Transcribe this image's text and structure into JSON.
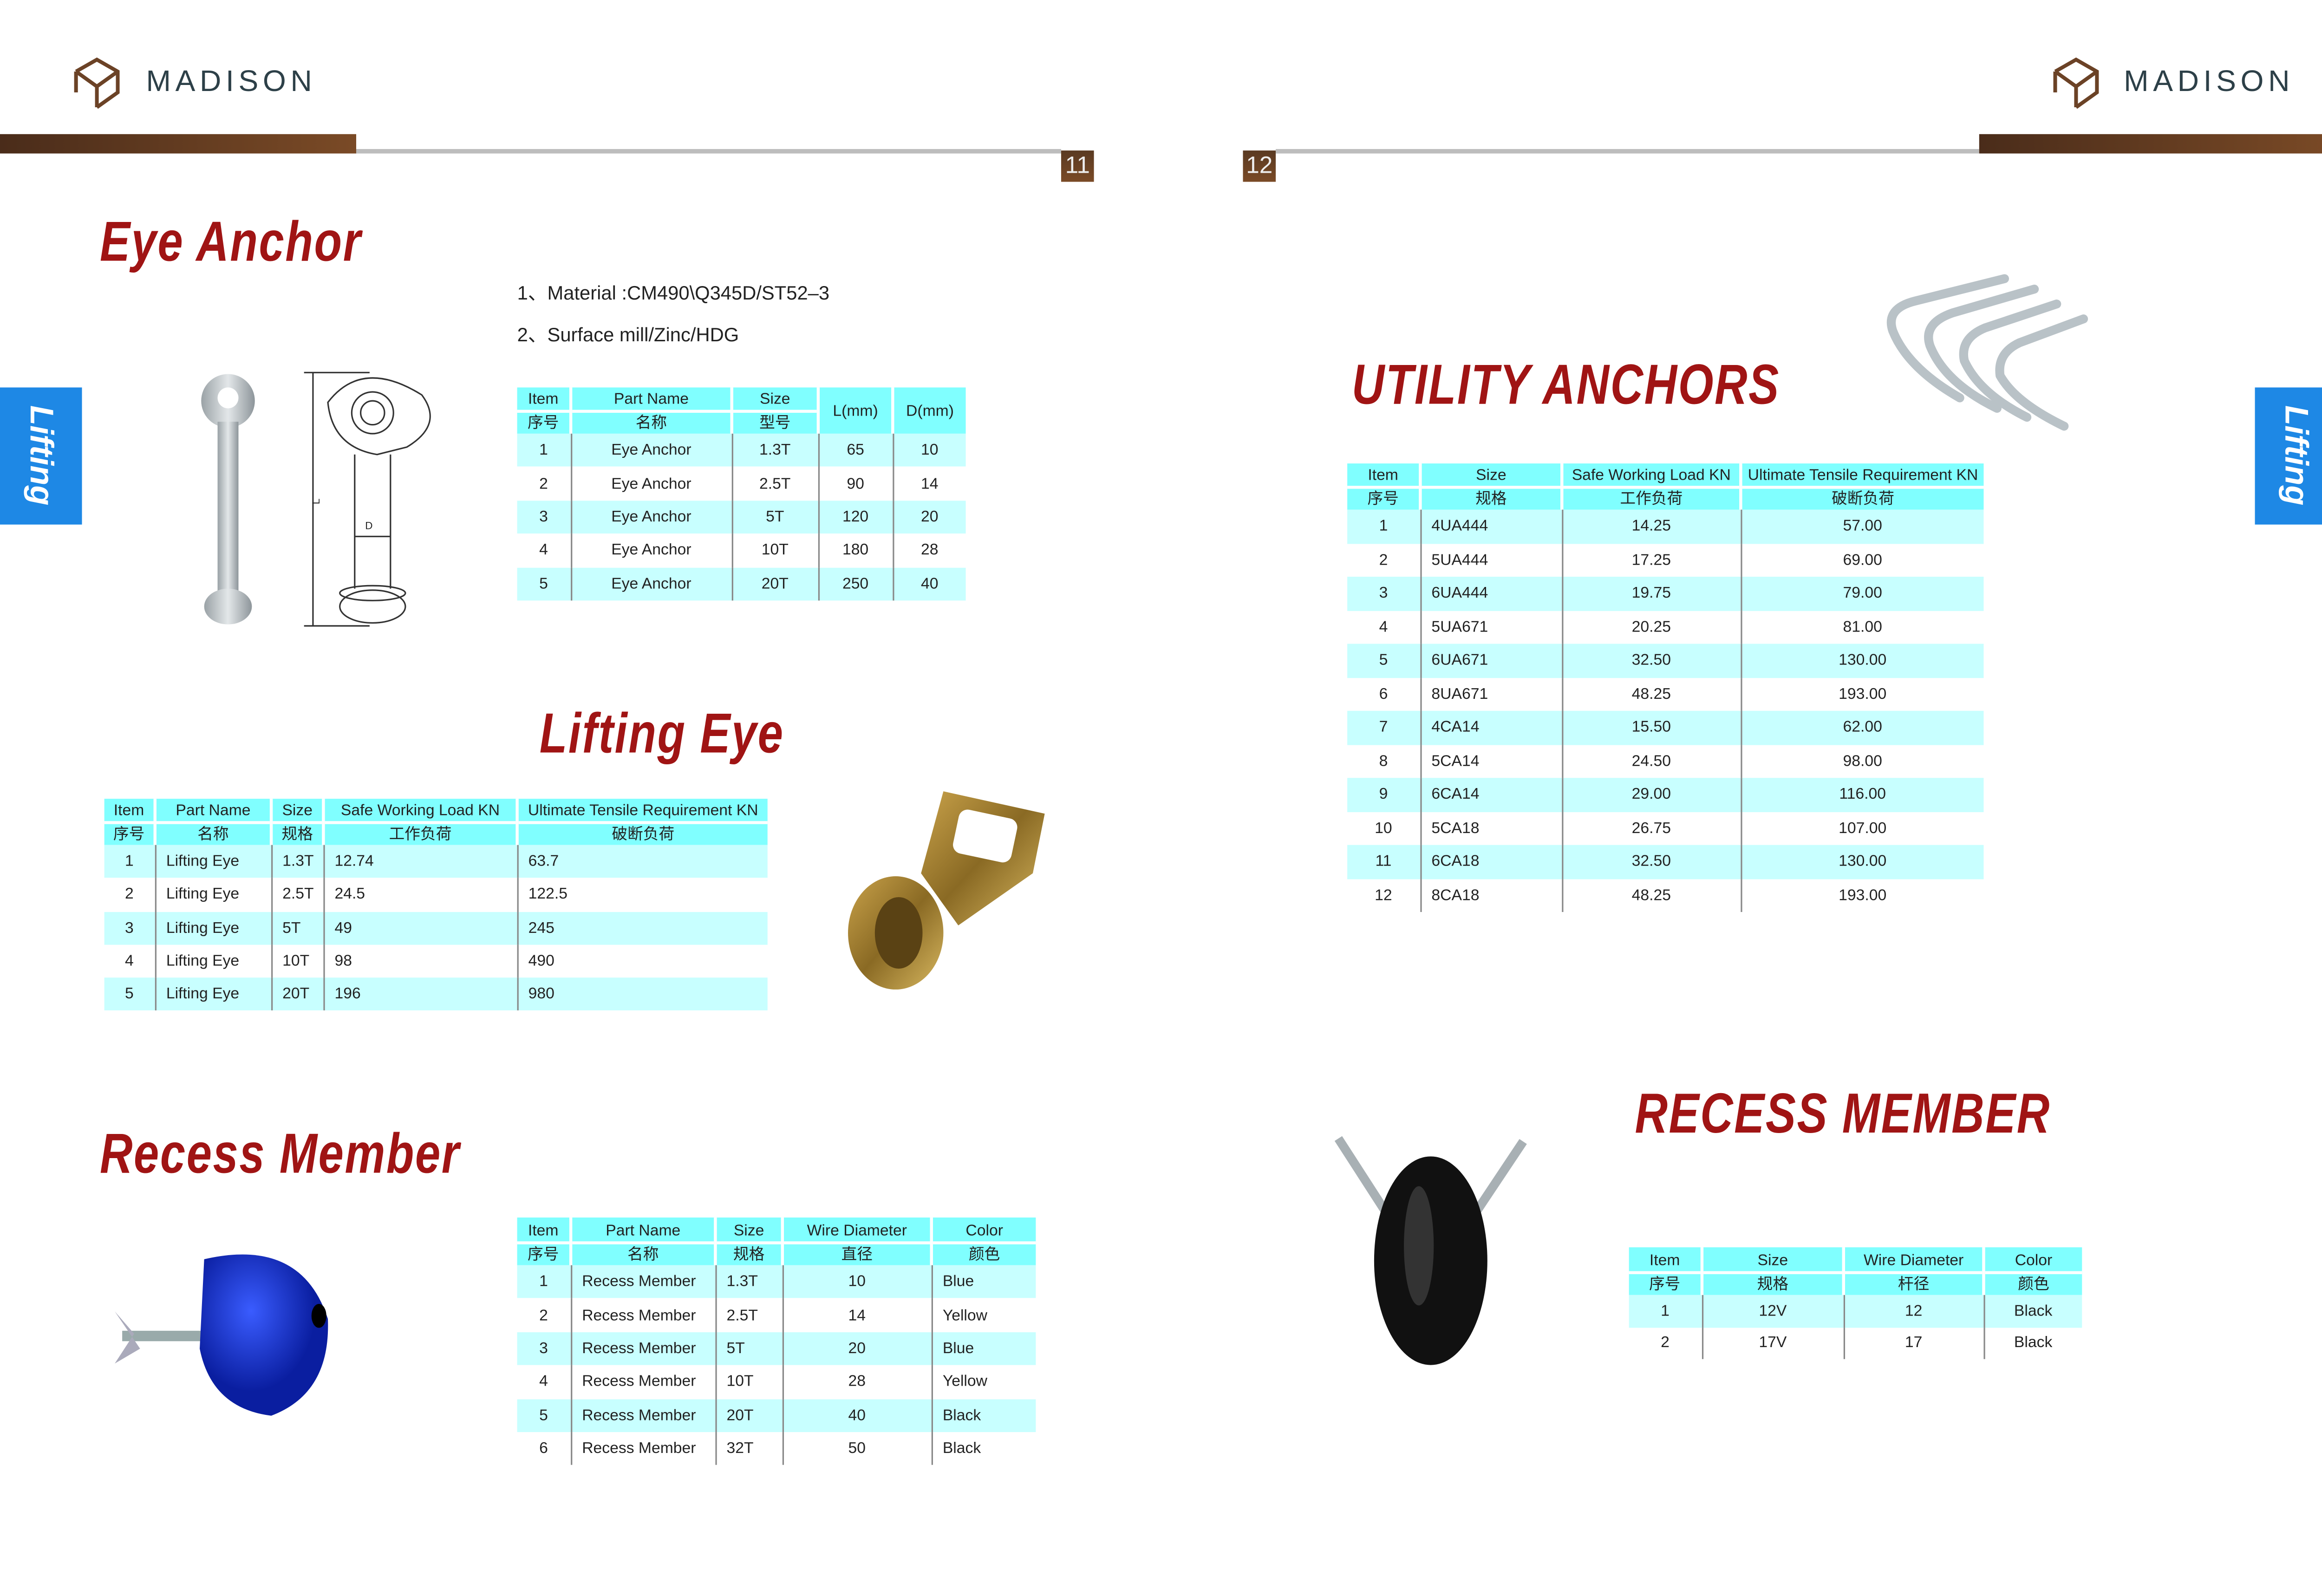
{
  "brand": {
    "name": "MADISON"
  },
  "pages": {
    "left_number": "11",
    "right_number": "12"
  },
  "side_tab": {
    "label": "Lifting"
  },
  "colors": {
    "title_red": "#a01414",
    "header_cyan": "#80ffff",
    "row_cyan": "#c8ffff",
    "tab_blue": "#1e88e5",
    "brand_brown": "#6b4226"
  },
  "eye_anchor": {
    "title": "Eye Anchor",
    "notes": [
      "1、Material :CM490\\Q345D/ST52–3",
      "2、Surface mill/Zinc/HDG"
    ],
    "drawing_labels": {
      "length": "L",
      "diameter": "D"
    },
    "headers": [
      {
        "en": "Item",
        "zh": "序号"
      },
      {
        "en": "Part Name",
        "zh": "名称"
      },
      {
        "en": "Size",
        "zh": "型号"
      },
      {
        "en": "L(mm)",
        "zh": ""
      },
      {
        "en": "D(mm)",
        "zh": ""
      }
    ],
    "rows": [
      [
        "1",
        "Eye Anchor",
        "1.3T",
        "65",
        "10"
      ],
      [
        "2",
        "Eye Anchor",
        "2.5T",
        "90",
        "14"
      ],
      [
        "3",
        "Eye Anchor",
        "5T",
        "120",
        "20"
      ],
      [
        "4",
        "Eye Anchor",
        "10T",
        "180",
        "28"
      ],
      [
        "5",
        "Eye Anchor",
        "20T",
        "250",
        "40"
      ]
    ]
  },
  "lifting_eye": {
    "title": "Lifting  Eye",
    "headers": [
      {
        "en": "Item",
        "zh": "序号"
      },
      {
        "en": "Part Name",
        "zh": "名称"
      },
      {
        "en": "Size",
        "zh": "规格"
      },
      {
        "en": "Safe Working Load  KN",
        "zh": "工作负荷"
      },
      {
        "en": "Ultimate Tensile Requirement  KN",
        "zh": "破断负荷"
      }
    ],
    "rows": [
      [
        "1",
        "Lifting  Eye",
        "1.3T",
        "12.74",
        "63.7"
      ],
      [
        "2",
        "Lifting  Eye",
        "2.5T",
        "24.5",
        "122.5"
      ],
      [
        "3",
        "Lifting  Eye",
        "5T",
        "49",
        "245"
      ],
      [
        "4",
        "Lifting  Eye",
        "10T",
        "98",
        "490"
      ],
      [
        "5",
        "Lifting  Eye",
        "20T",
        "196",
        "980"
      ]
    ]
  },
  "recess_member": {
    "title": "Recess Member",
    "headers": [
      {
        "en": "Item",
        "zh": "序号"
      },
      {
        "en": "Part Name",
        "zh": "名称"
      },
      {
        "en": "Size",
        "zh": "规格"
      },
      {
        "en": "Wire Diameter",
        "zh": "直径"
      },
      {
        "en": "Color",
        "zh": "颜色"
      }
    ],
    "rows": [
      [
        "1",
        "Recess Member",
        "1.3T",
        "10",
        "Blue"
      ],
      [
        "2",
        "Recess Member",
        "2.5T",
        "14",
        "Yellow"
      ],
      [
        "3",
        "Recess Member",
        "5T",
        "20",
        "Blue"
      ],
      [
        "4",
        "Recess Member",
        "10T",
        "28",
        "Yellow"
      ],
      [
        "5",
        "Recess Member",
        "20T",
        "40",
        "Black"
      ],
      [
        "6",
        "Recess Member",
        "32T",
        "50",
        "Black"
      ]
    ]
  },
  "utility_anchors": {
    "title": "UTILITY ANCHORS",
    "headers": [
      {
        "en": "Item",
        "zh": "序号"
      },
      {
        "en": "Size",
        "zh": "规格"
      },
      {
        "en": "Safe Working Load  KN",
        "zh": "工作负荷"
      },
      {
        "en": "Ultimate Tensile Requirement  KN",
        "zh": "破断负荷"
      }
    ],
    "rows": [
      [
        "1",
        "4UA444",
        "14.25",
        "57.00"
      ],
      [
        "2",
        "5UA444",
        "17.25",
        "69.00"
      ],
      [
        "3",
        "6UA444",
        "19.75",
        "79.00"
      ],
      [
        "4",
        "5UA671",
        "20.25",
        "81.00"
      ],
      [
        "5",
        "6UA671",
        "32.50",
        "130.00"
      ],
      [
        "6",
        "8UA671",
        "48.25",
        "193.00"
      ],
      [
        "7",
        "4CA14",
        "15.50",
        "62.00"
      ],
      [
        "8",
        "5CA14",
        "24.50",
        "98.00"
      ],
      [
        "9",
        "6CA14",
        "29.00",
        "116.00"
      ],
      [
        "10",
        "5CA18",
        "26.75",
        "107.00"
      ],
      [
        "11",
        "6CA18",
        "32.50",
        "130.00"
      ],
      [
        "12",
        "8CA18",
        "48.25",
        "193.00"
      ]
    ]
  },
  "recess_member_right": {
    "title": "RECESS MEMBER",
    "headers": [
      {
        "en": "Item",
        "zh": "序号"
      },
      {
        "en": "Size",
        "zh": "规格"
      },
      {
        "en": "Wire Diameter",
        "zh": "杆径"
      },
      {
        "en": "Color",
        "zh": "颜色"
      }
    ],
    "rows": [
      [
        "1",
        "12V",
        "12",
        "Black"
      ],
      [
        "2",
        "17V",
        "17",
        "Black"
      ]
    ]
  }
}
